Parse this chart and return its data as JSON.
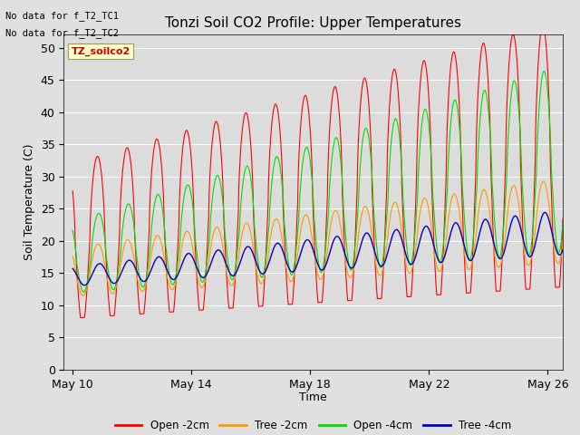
{
  "title": "Tonzi Soil CO2 Profile: Upper Temperatures",
  "xlabel": "Time",
  "ylabel": "Soil Temperature (C)",
  "ylim": [
    0,
    52
  ],
  "yticks": [
    0,
    5,
    10,
    15,
    20,
    25,
    30,
    35,
    40,
    45,
    50
  ],
  "fig_bg": "#e0e0e0",
  "plot_bg": "#dcdcdc",
  "no_data_text": [
    "No data for f_T2_TC1",
    "No data for f_T2_TC2"
  ],
  "soilco2_label": "TZ_soilco2",
  "legend": [
    "Open -2cm",
    "Tree -2cm",
    "Open -4cm",
    "Tree -4cm"
  ],
  "line_colors": [
    "#ff0000",
    "#ff9900",
    "#00dd00",
    "#0000cc"
  ],
  "xtick_labels": [
    "May 10",
    "May 14",
    "May 18",
    "May 22",
    "May 26"
  ],
  "n_days": 17,
  "ppd": 144
}
